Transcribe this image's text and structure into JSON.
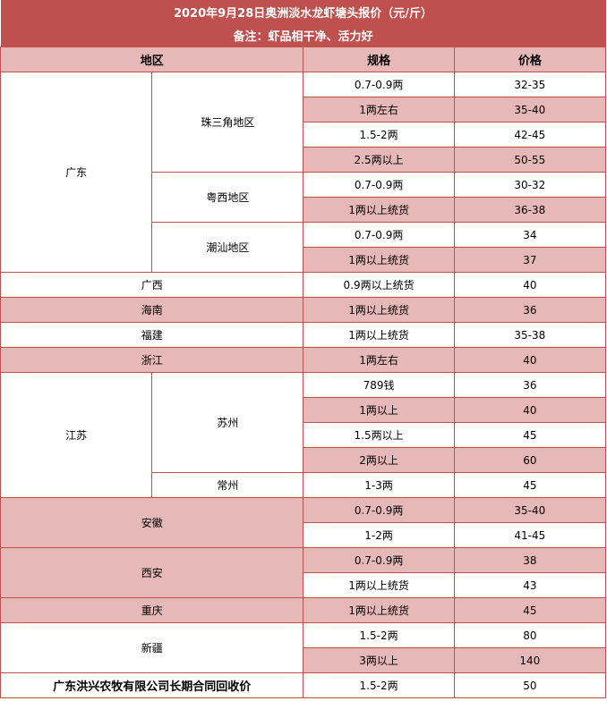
{
  "title": "2020年9月28日奥洲淡水龙虾塘头报价（元/斤）",
  "note": "备注：虾品相干净、活力好",
  "headers": {
    "region": "地区",
    "spec": "规格",
    "price": "价格"
  },
  "colors": {
    "header": "#c0504d",
    "highlight": "#e6b8b7",
    "border": "#c0504d"
  },
  "groups": [
    {
      "region": "广东",
      "highlight": false,
      "subregions": [
        {
          "name": "珠三角地区",
          "items": [
            [
              "0.7-0.9两",
              "32-35"
            ],
            [
              "1两左右",
              "35-40"
            ],
            [
              "1.5-2两",
              "42-45"
            ],
            [
              "2.5两以上",
              "50-55"
            ]
          ]
        },
        {
          "name": "粤西地区",
          "items": [
            [
              "0.7-0.9两",
              "30-32"
            ],
            [
              "1两以上统货",
              "36-38"
            ]
          ]
        },
        {
          "name": "潮汕地区",
          "items": [
            [
              "0.7-0.9两",
              "34"
            ],
            [
              "1两以上统货",
              "37"
            ]
          ]
        }
      ]
    },
    {
      "region": "广西",
      "highlight": false,
      "items": [
        [
          "0.9两以上统货",
          "40"
        ]
      ]
    },
    {
      "region": "海南",
      "highlight": true,
      "items": [
        [
          "1两以上统货",
          "36"
        ]
      ]
    },
    {
      "region": "福建",
      "highlight": false,
      "items": [
        [
          "1两以上统货",
          "35-38"
        ]
      ]
    },
    {
      "region": "浙江",
      "highlight": true,
      "items": [
        [
          "1两左右",
          "40"
        ]
      ]
    },
    {
      "region": "江苏",
      "highlight": false,
      "subregions": [
        {
          "name": "苏州",
          "items": [
            [
              "789钱",
              "36"
            ],
            [
              "1两以上",
              "40"
            ],
            [
              "1.5两以上",
              "45"
            ],
            [
              "2两以上",
              "60"
            ]
          ]
        },
        {
          "name": "常州",
          "items": [
            [
              "1-3两",
              "45"
            ]
          ]
        }
      ]
    },
    {
      "region": "安徽",
      "highlight": true,
      "items": [
        [
          "0.7-0.9两",
          "35-40"
        ],
        [
          "1-2两",
          "41-45"
        ]
      ]
    },
    {
      "region": "西安",
      "highlight": true,
      "items": [
        [
          "0.7-0.9两",
          "38"
        ],
        [
          "1两以上统货",
          "43"
        ]
      ]
    },
    {
      "region": "重庆",
      "highlight": true,
      "items": [
        [
          "1两以上统货",
          "45"
        ]
      ]
    },
    {
      "region": "新疆",
      "highlight": false,
      "items": [
        [
          "1.5-2两",
          "80"
        ],
        [
          "3两以上",
          "140"
        ]
      ]
    },
    {
      "region": "广东洪兴农牧有限公司长期合同回收价",
      "highlight": false,
      "bold": true,
      "items": [
        [
          "1.5-2两",
          "50"
        ]
      ]
    }
  ]
}
